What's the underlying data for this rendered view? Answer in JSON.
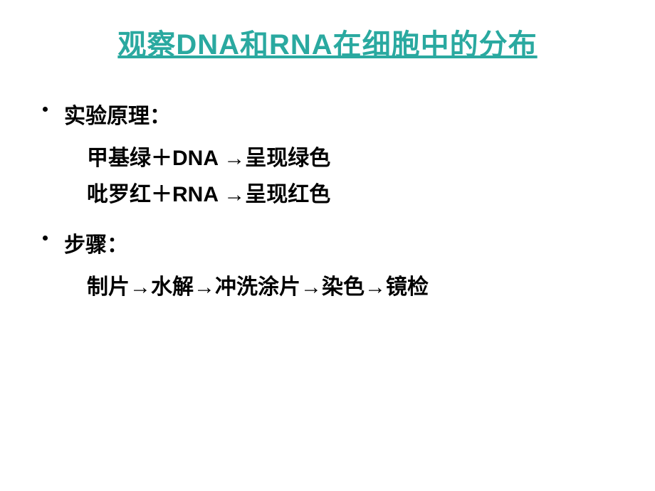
{
  "slide": {
    "title": "观察DNA和RNA在细胞中的分布",
    "sections": [
      {
        "label": "实验原理：",
        "lines": [
          "甲基绿＋DNA →呈现绿色",
          "吡罗红＋RNA →呈现红色"
        ]
      },
      {
        "label": "步骤：",
        "lines": [
          "制片→水解→冲洗涂片→染色→镜检"
        ]
      }
    ]
  },
  "styles": {
    "background_color": "#ffffff",
    "title_color": "#2aa9a0",
    "title_fontsize": 40,
    "body_color": "#000000",
    "body_fontsize": 30,
    "body_fontweight": "bold",
    "bullet_color": "#000000"
  }
}
